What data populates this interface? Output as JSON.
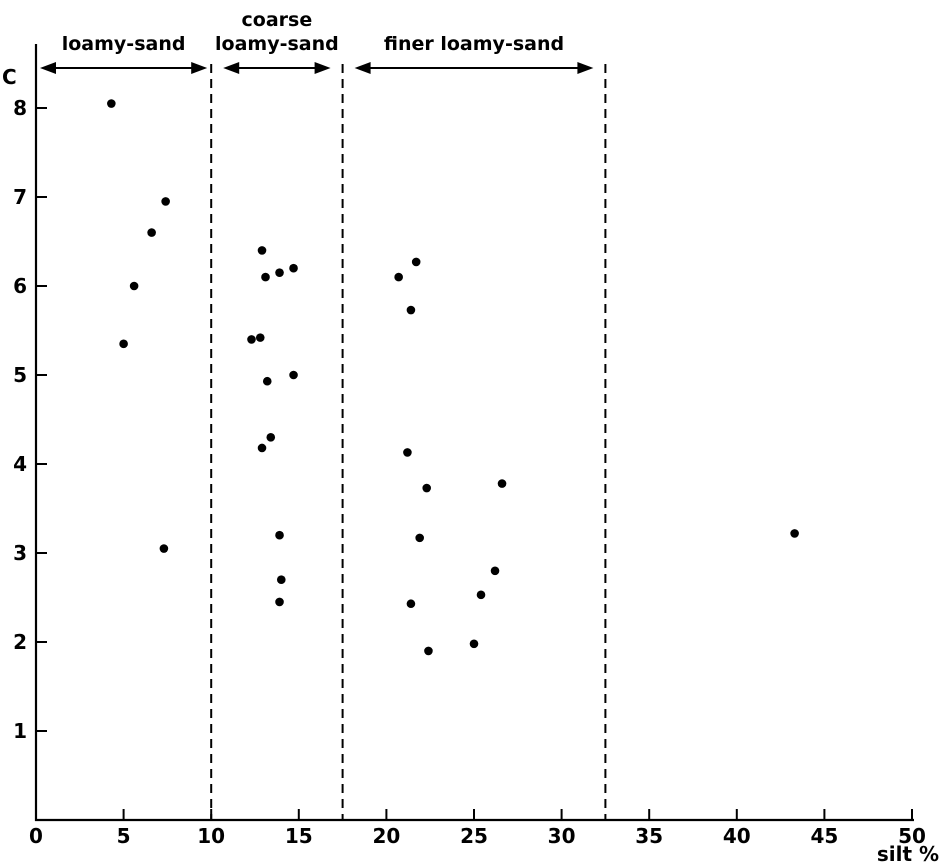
{
  "chart_data": {
    "type": "scatter",
    "xlabel": "silt %",
    "ylabel": "C",
    "xlim": [
      0,
      50
    ],
    "ylim": [
      0,
      8.5
    ],
    "x_ticks": [
      0,
      5,
      10,
      15,
      20,
      25,
      30,
      35,
      40,
      45,
      50
    ],
    "y_ticks": [
      1,
      2,
      3,
      4,
      5,
      6,
      7,
      8
    ],
    "grid": false,
    "zones": [
      {
        "label_lines": [
          "loamy-sand"
        ],
        "x_start": 0,
        "x_end": 10,
        "divider_at_end": true
      },
      {
        "label_lines": [
          "coarse",
          "loamy-sand"
        ],
        "x_start": 10,
        "x_end": 17.5,
        "divider_at_end": true
      },
      {
        "label_lines": [
          "finer loamy-sand"
        ],
        "x_start": 17.5,
        "x_end": 32.5,
        "divider_at_end": true
      }
    ],
    "points": [
      {
        "x": 4.3,
        "y": 8.05
      },
      {
        "x": 7.4,
        "y": 6.95
      },
      {
        "x": 6.6,
        "y": 6.6
      },
      {
        "x": 5.6,
        "y": 6.0
      },
      {
        "x": 5.0,
        "y": 5.35
      },
      {
        "x": 7.3,
        "y": 3.05
      },
      {
        "x": 12.9,
        "y": 6.4
      },
      {
        "x": 13.1,
        "y": 6.1
      },
      {
        "x": 13.9,
        "y": 6.15
      },
      {
        "x": 14.7,
        "y": 6.2
      },
      {
        "x": 12.3,
        "y": 5.4
      },
      {
        "x": 12.8,
        "y": 5.42
      },
      {
        "x": 13.2,
        "y": 4.93
      },
      {
        "x": 14.7,
        "y": 5.0
      },
      {
        "x": 13.4,
        "y": 4.3
      },
      {
        "x": 12.9,
        "y": 4.18
      },
      {
        "x": 13.9,
        "y": 3.2
      },
      {
        "x": 14.0,
        "y": 2.7
      },
      {
        "x": 13.9,
        "y": 2.45
      },
      {
        "x": 20.7,
        "y": 6.1
      },
      {
        "x": 21.7,
        "y": 6.27
      },
      {
        "x": 21.4,
        "y": 5.73
      },
      {
        "x": 21.2,
        "y": 4.13
      },
      {
        "x": 22.3,
        "y": 3.73
      },
      {
        "x": 26.6,
        "y": 3.78
      },
      {
        "x": 21.9,
        "y": 3.17
      },
      {
        "x": 26.2,
        "y": 2.8
      },
      {
        "x": 25.4,
        "y": 2.53
      },
      {
        "x": 21.4,
        "y": 2.43
      },
      {
        "x": 25.0,
        "y": 1.98
      },
      {
        "x": 22.4,
        "y": 1.9
      },
      {
        "x": 43.3,
        "y": 3.22
      }
    ]
  }
}
